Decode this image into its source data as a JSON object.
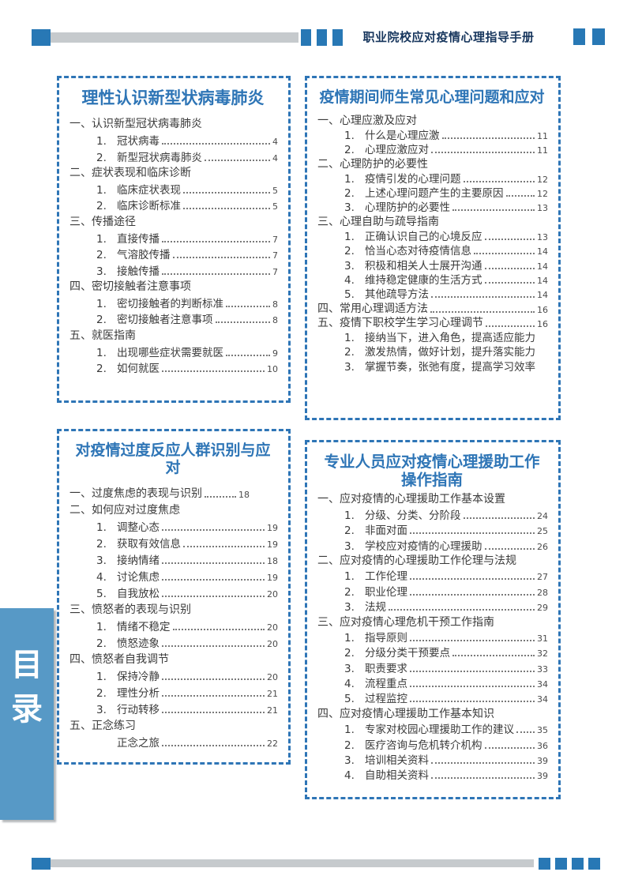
{
  "header": {
    "doc_title": "职业院校应对疫情心理指导手册"
  },
  "sidebar": {
    "chars": [
      "目",
      "录"
    ]
  },
  "colors": {
    "accent_blue": "#2E75B6",
    "tick_blue": "#2878B5",
    "bar_gray": "#C6CACD",
    "title_navy": "#17365D",
    "sidebar_blue": "#5799C6"
  },
  "boxes": [
    {
      "title": "理性认识新型状病毒肺炎",
      "entries": [
        {
          "indent": 0,
          "num": "一、",
          "text": "认识新型冠状病毒肺炎"
        },
        {
          "indent": 1,
          "num": "1.",
          "text": "冠状病毒",
          "page": "4"
        },
        {
          "indent": 1,
          "num": "2.",
          "text": "新型冠状病毒肺炎",
          "page": "4"
        },
        {
          "indent": 0,
          "num": "二、",
          "text": "症状表现和临床诊断"
        },
        {
          "indent": 1,
          "num": "1.",
          "text": "临床症状表现",
          "page": "5"
        },
        {
          "indent": 1,
          "num": "2.",
          "text": "临床诊断标准",
          "page": "5"
        },
        {
          "indent": 0,
          "num": "三、",
          "text": "传播途径"
        },
        {
          "indent": 1,
          "num": "1.",
          "text": "直接传播",
          "page": "7"
        },
        {
          "indent": 1,
          "num": "2.",
          "text": "气溶胶传播",
          "page": "7"
        },
        {
          "indent": 1,
          "num": "3.",
          "text": "接触传播",
          "page": "7"
        },
        {
          "indent": 0,
          "num": "四、",
          "text": "密切接触者注意事项"
        },
        {
          "indent": 1,
          "num": "1.",
          "text": "密切接触者的判断标准",
          "page": "8"
        },
        {
          "indent": 1,
          "num": "2.",
          "text": "密切接触者注意事项",
          "page": "8"
        },
        {
          "indent": 0,
          "num": "五、",
          "text": "就医指南"
        },
        {
          "indent": 1,
          "num": "1.",
          "text": "出现哪些症状需要就医",
          "page": "9"
        },
        {
          "indent": 1,
          "num": "2.",
          "text": "如何就医",
          "page": "10"
        }
      ]
    },
    {
      "title": "疫情期间师生常见心理问题和应对",
      "entries": [
        {
          "indent": 0,
          "num": "一、",
          "text": "心理应激及应对"
        },
        {
          "indent": 1,
          "num": "1.",
          "text": "什么是心理应激",
          "page": "11"
        },
        {
          "indent": 1,
          "num": "2.",
          "text": "心理应激应对",
          "page": "11"
        },
        {
          "indent": 0,
          "num": "二、",
          "text": "心理防护的必要性"
        },
        {
          "indent": 1,
          "num": "1.",
          "text": "疫情引发的心理问题",
          "page": "12"
        },
        {
          "indent": 1,
          "num": "2.",
          "text": "上述心理问题产生的主要原因",
          "page": "12"
        },
        {
          "indent": 1,
          "num": "3.",
          "text": "心理防护的必要性",
          "page": "13"
        },
        {
          "indent": 0,
          "num": "三、",
          "text": "心理自助与疏导指南"
        },
        {
          "indent": 1,
          "num": "1.",
          "text": "正确认识自己的心境反应",
          "page": "13"
        },
        {
          "indent": 1,
          "num": "2.",
          "text": "恰当心态对待疫情信息",
          "page": "14"
        },
        {
          "indent": 1,
          "num": "3.",
          "text": "积极和相关人士展开沟通",
          "page": "14"
        },
        {
          "indent": 1,
          "num": "4.",
          "text": "维持稳定健康的生活方式",
          "page": "14"
        },
        {
          "indent": 1,
          "num": "5.",
          "text": "其他疏导方法",
          "page": "14"
        },
        {
          "indent": 0,
          "num": "四、",
          "text": "常用心理调适方法",
          "page": "16"
        },
        {
          "indent": 0,
          "num": "五、",
          "text": "疫情下职校学生学习心理调节",
          "page": "16"
        },
        {
          "indent": 1,
          "num": "1.",
          "text": "接纳当下，进入角色，提高适应能力"
        },
        {
          "indent": 1,
          "num": "2.",
          "text": "激发热情，做好计划，提升落实能力"
        },
        {
          "indent": 1,
          "num": "3.",
          "text": "掌握节奏，张弛有度，提高学习效率"
        }
      ]
    },
    {
      "title": "对疫情过度反应人群识别与应对",
      "entries": [
        {
          "indent": 0,
          "num": "一、",
          "text": "过度焦虑的表现与识别",
          "page": "18",
          "short": true
        },
        {
          "indent": 0,
          "num": "二、",
          "text": "如何应对过度焦虑"
        },
        {
          "indent": 1,
          "num": "1.",
          "text": "调整心态",
          "page": "19"
        },
        {
          "indent": 1,
          "num": "2.",
          "text": "获取有效信息",
          "page": "19"
        },
        {
          "indent": 1,
          "num": "3.",
          "text": "接纳情绪",
          "page": "18"
        },
        {
          "indent": 1,
          "num": "4.",
          "text": "讨论焦虑",
          "page": "19"
        },
        {
          "indent": 1,
          "num": "5.",
          "text": "自我放松",
          "page": "20"
        },
        {
          "indent": 0,
          "num": "三、",
          "text": "愤怒者的表现与识别"
        },
        {
          "indent": 1,
          "num": "1.",
          "text": "情绪不稳定",
          "page": "20"
        },
        {
          "indent": 1,
          "num": "2.",
          "text": "愤怒迹象",
          "page": "20"
        },
        {
          "indent": 0,
          "num": "四、",
          "text": "愤怒者自我调节"
        },
        {
          "indent": 1,
          "num": "1.",
          "text": "保持冷静",
          "page": "20"
        },
        {
          "indent": 1,
          "num": "2.",
          "text": "理性分析",
          "page": "21"
        },
        {
          "indent": 1,
          "num": "3.",
          "text": "行动转移",
          "page": "21"
        },
        {
          "indent": 0,
          "num": "五、",
          "text": "正念练习"
        },
        {
          "indent": 1,
          "num": "",
          "text": "正念之旅",
          "page": "22"
        }
      ]
    },
    {
      "title": "专业人员应对疫情心理援助工作操作指南",
      "entries": [
        {
          "indent": 0,
          "num": "一、",
          "text": "应对疫情的心理援助工作基本设置"
        },
        {
          "indent": 1,
          "num": "1.",
          "text": "分级、分类、分阶段",
          "page": "24"
        },
        {
          "indent": 1,
          "num": "2.",
          "text": "非面对面",
          "page": "25"
        },
        {
          "indent": 1,
          "num": "3.",
          "text": "学校应对疫情的心理援助",
          "page": "26"
        },
        {
          "indent": 0,
          "num": "二、",
          "text": "应对疫情的心理援助工作伦理与法规"
        },
        {
          "indent": 1,
          "num": "1.",
          "text": "工作伦理",
          "page": "27"
        },
        {
          "indent": 1,
          "num": "2.",
          "text": "职业伦理",
          "page": "28"
        },
        {
          "indent": 1,
          "num": "3.",
          "text": "法规",
          "page": "29"
        },
        {
          "indent": 0,
          "num": "三、",
          "text": "应对疫情心理危机干预工作指南"
        },
        {
          "indent": 1,
          "num": "1.",
          "text": "指导原则",
          "page": "31"
        },
        {
          "indent": 1,
          "num": "2.",
          "text": "分级分类干预要点",
          "page": "32"
        },
        {
          "indent": 1,
          "num": "3.",
          "text": "职责要求",
          "page": "33"
        },
        {
          "indent": 1,
          "num": "4.",
          "text": "流程重点",
          "page": "34"
        },
        {
          "indent": 1,
          "num": "5.",
          "text": "过程监控",
          "page": "34"
        },
        {
          "indent": 0,
          "num": "四、",
          "text": "应对疫情心理援助工作基本知识"
        },
        {
          "indent": 1,
          "num": "1.",
          "text": "专家对校园心理援助工作的建议",
          "page": "35"
        },
        {
          "indent": 1,
          "num": "2.",
          "text": "医疗咨询与危机转介机构",
          "page": "36"
        },
        {
          "indent": 1,
          "num": "3.",
          "text": "培训相关资料",
          "page": "39"
        },
        {
          "indent": 1,
          "num": "4.",
          "text": "自助相关资料",
          "page": "39"
        }
      ]
    }
  ]
}
